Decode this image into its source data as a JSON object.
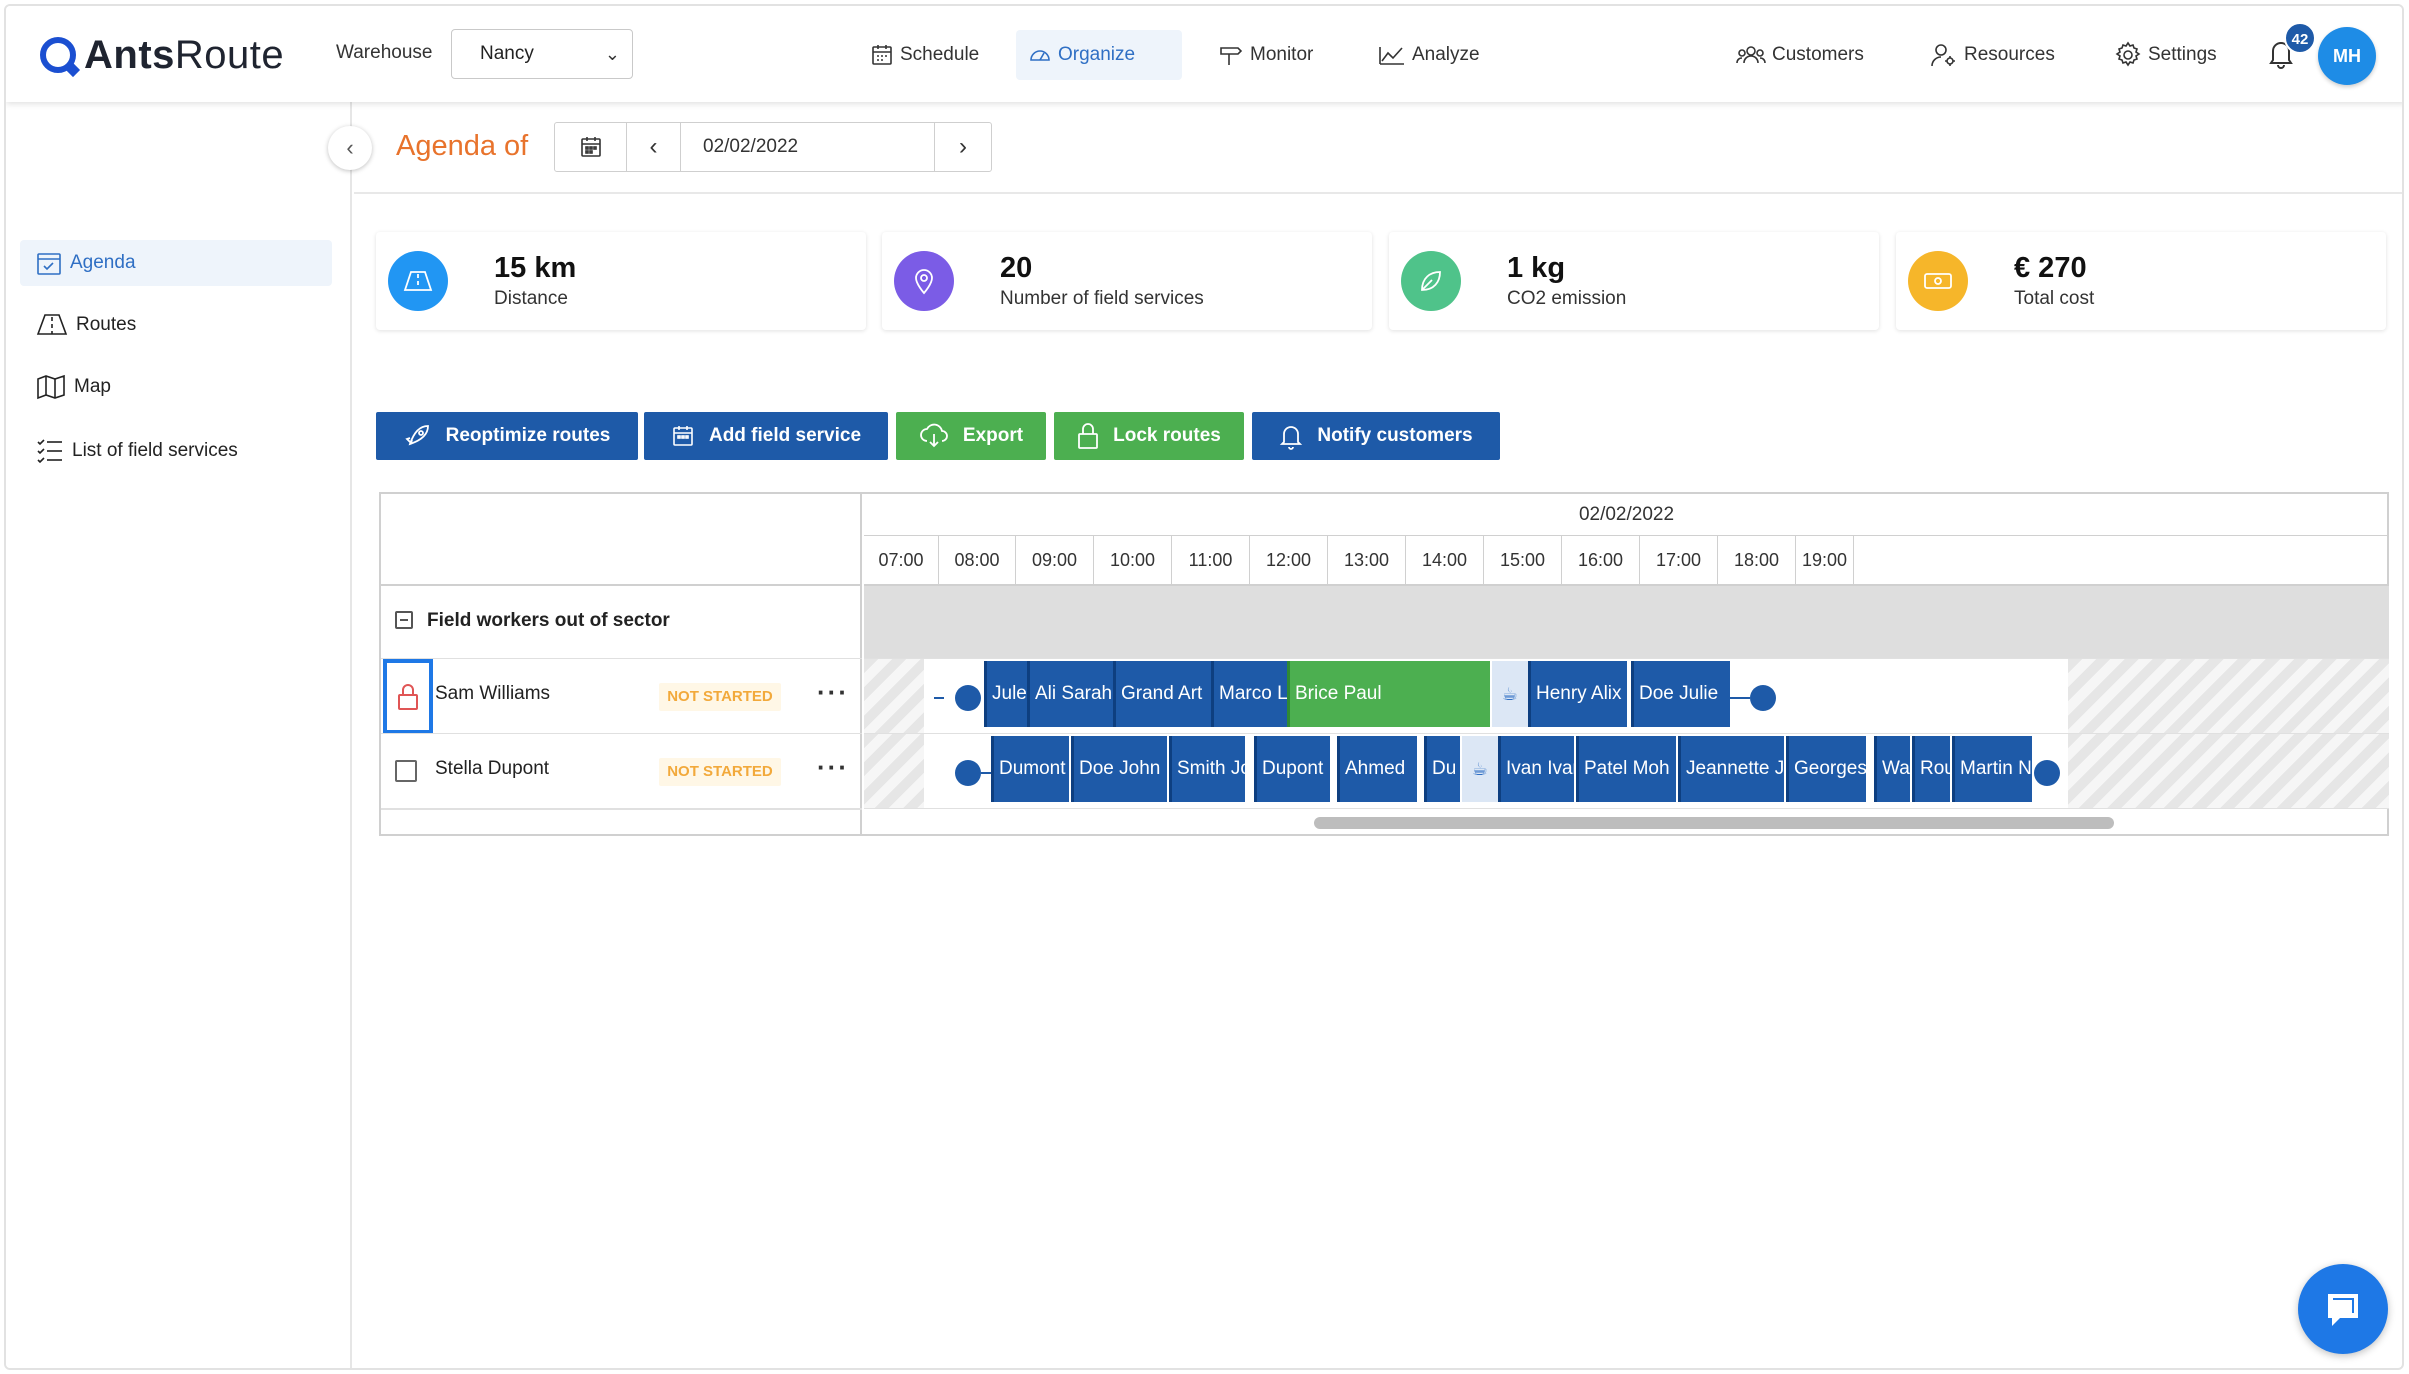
{
  "app": {
    "logo_bold": "Ants",
    "logo_light": "Route"
  },
  "warehouse": {
    "label": "Warehouse",
    "value": "Nancy"
  },
  "nav": {
    "schedule": "Schedule",
    "organize": "Organize",
    "monitor": "Monitor",
    "analyze": "Analyze",
    "customers": "Customers",
    "resources": "Resources",
    "settings": "Settings",
    "notifications_count": "42",
    "user_initials": "MH"
  },
  "sidebar": {
    "items": [
      {
        "label": "Agenda"
      },
      {
        "label": "Routes"
      },
      {
        "label": "Map"
      },
      {
        "label": "List of field services"
      }
    ]
  },
  "agenda": {
    "title": "Agenda of",
    "date": "02/02/2022"
  },
  "kpis": [
    {
      "value": "15 km",
      "label": "Distance",
      "color": "#2196f3"
    },
    {
      "value": "20",
      "label": "Number of field services",
      "color": "#7b5ce6"
    },
    {
      "value": "1 kg",
      "label": "CO2 emission",
      "color": "#4fc38a"
    },
    {
      "value": "€ 270",
      "label": "Total cost",
      "color": "#f6b62a"
    }
  ],
  "actions": {
    "reoptimize": "Reoptimize routes",
    "add": "Add field service",
    "export": "Export",
    "lock": "Lock routes",
    "notify": "Notify customers"
  },
  "scheduler": {
    "date": "02/02/2022",
    "hours": [
      "07:00",
      "08:00",
      "09:00",
      "10:00",
      "11:00",
      "12:00",
      "13:00",
      "14:00",
      "15:00",
      "16:00",
      "17:00",
      "18:00",
      "19:00"
    ],
    "group_label": "Field workers out of sector",
    "workers": [
      {
        "name": "Sam Williams",
        "status": "NOT STARTED",
        "tasks": [
          "Jule",
          "Ali Sarah",
          "Grand Art",
          "Marco L",
          "Brice Paul",
          "Henry Alix",
          "Doe Julie"
        ]
      },
      {
        "name": "Stella Dupont",
        "status": "NOT STARTED",
        "tasks": [
          "Dumont",
          "Doe John",
          "Smith Jo",
          "Dupont",
          "Ahmed",
          "Du",
          "Ivan Ivan",
          "Patel Moh",
          "Jeannette J",
          "Georges",
          "Wa",
          "Rou",
          "Martin N"
        ]
      }
    ]
  },
  "colors": {
    "primary": "#1e5aa8",
    "accent": "#e8732c",
    "success": "#4caf50",
    "warning": "#f2a93b"
  }
}
